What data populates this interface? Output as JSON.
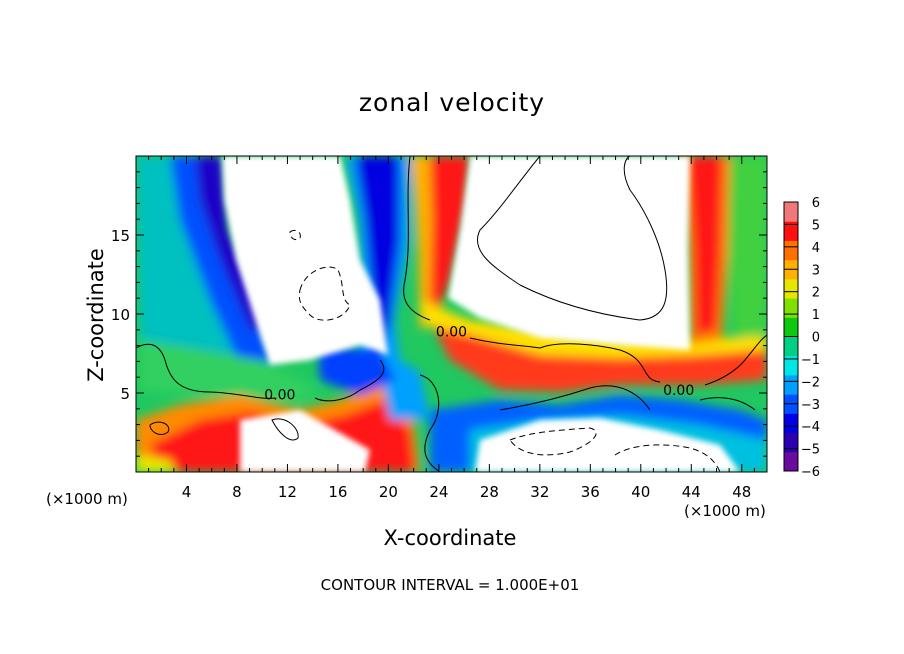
{
  "chart_data": {
    "type": "heatmap",
    "title": "zonal velocity",
    "xlabel": "X-coordinate",
    "ylabel": "Z-coordinate",
    "x_unit": "(×1000 m)",
    "xlim": [
      0,
      50
    ],
    "ylim": [
      0,
      20
    ],
    "x_ticks": [
      4,
      8,
      12,
      16,
      20,
      24,
      28,
      32,
      36,
      40,
      44,
      48
    ],
    "y_ticks": [
      5,
      10,
      15
    ],
    "colorbar": {
      "ticks": [
        6,
        5,
        4,
        3,
        2,
        1,
        0,
        -1,
        -2,
        -3,
        -4,
        -5,
        -6
      ],
      "vmin": -6,
      "vmax": 6,
      "colors": [
        "#6a0a9e",
        "#2a00b0",
        "#0000e6",
        "#0050ff",
        "#00a0ff",
        "#00e6e6",
        "#00d084",
        "#10c810",
        "#80e000",
        "#e6e600",
        "#ffb000",
        "#ff7000",
        "#ff1010",
        "#f07878"
      ]
    },
    "contour_labels": [
      {
        "text": "0.00",
        "x": 11.4,
        "z": 4.9
      },
      {
        "text": "0.00",
        "x": 25.0,
        "z": 8.9
      },
      {
        "text": "0.00",
        "x": 43.0,
        "z": 5.2
      }
    ],
    "footnote": "CONTOUR INTERVAL = 1.000E+01"
  }
}
